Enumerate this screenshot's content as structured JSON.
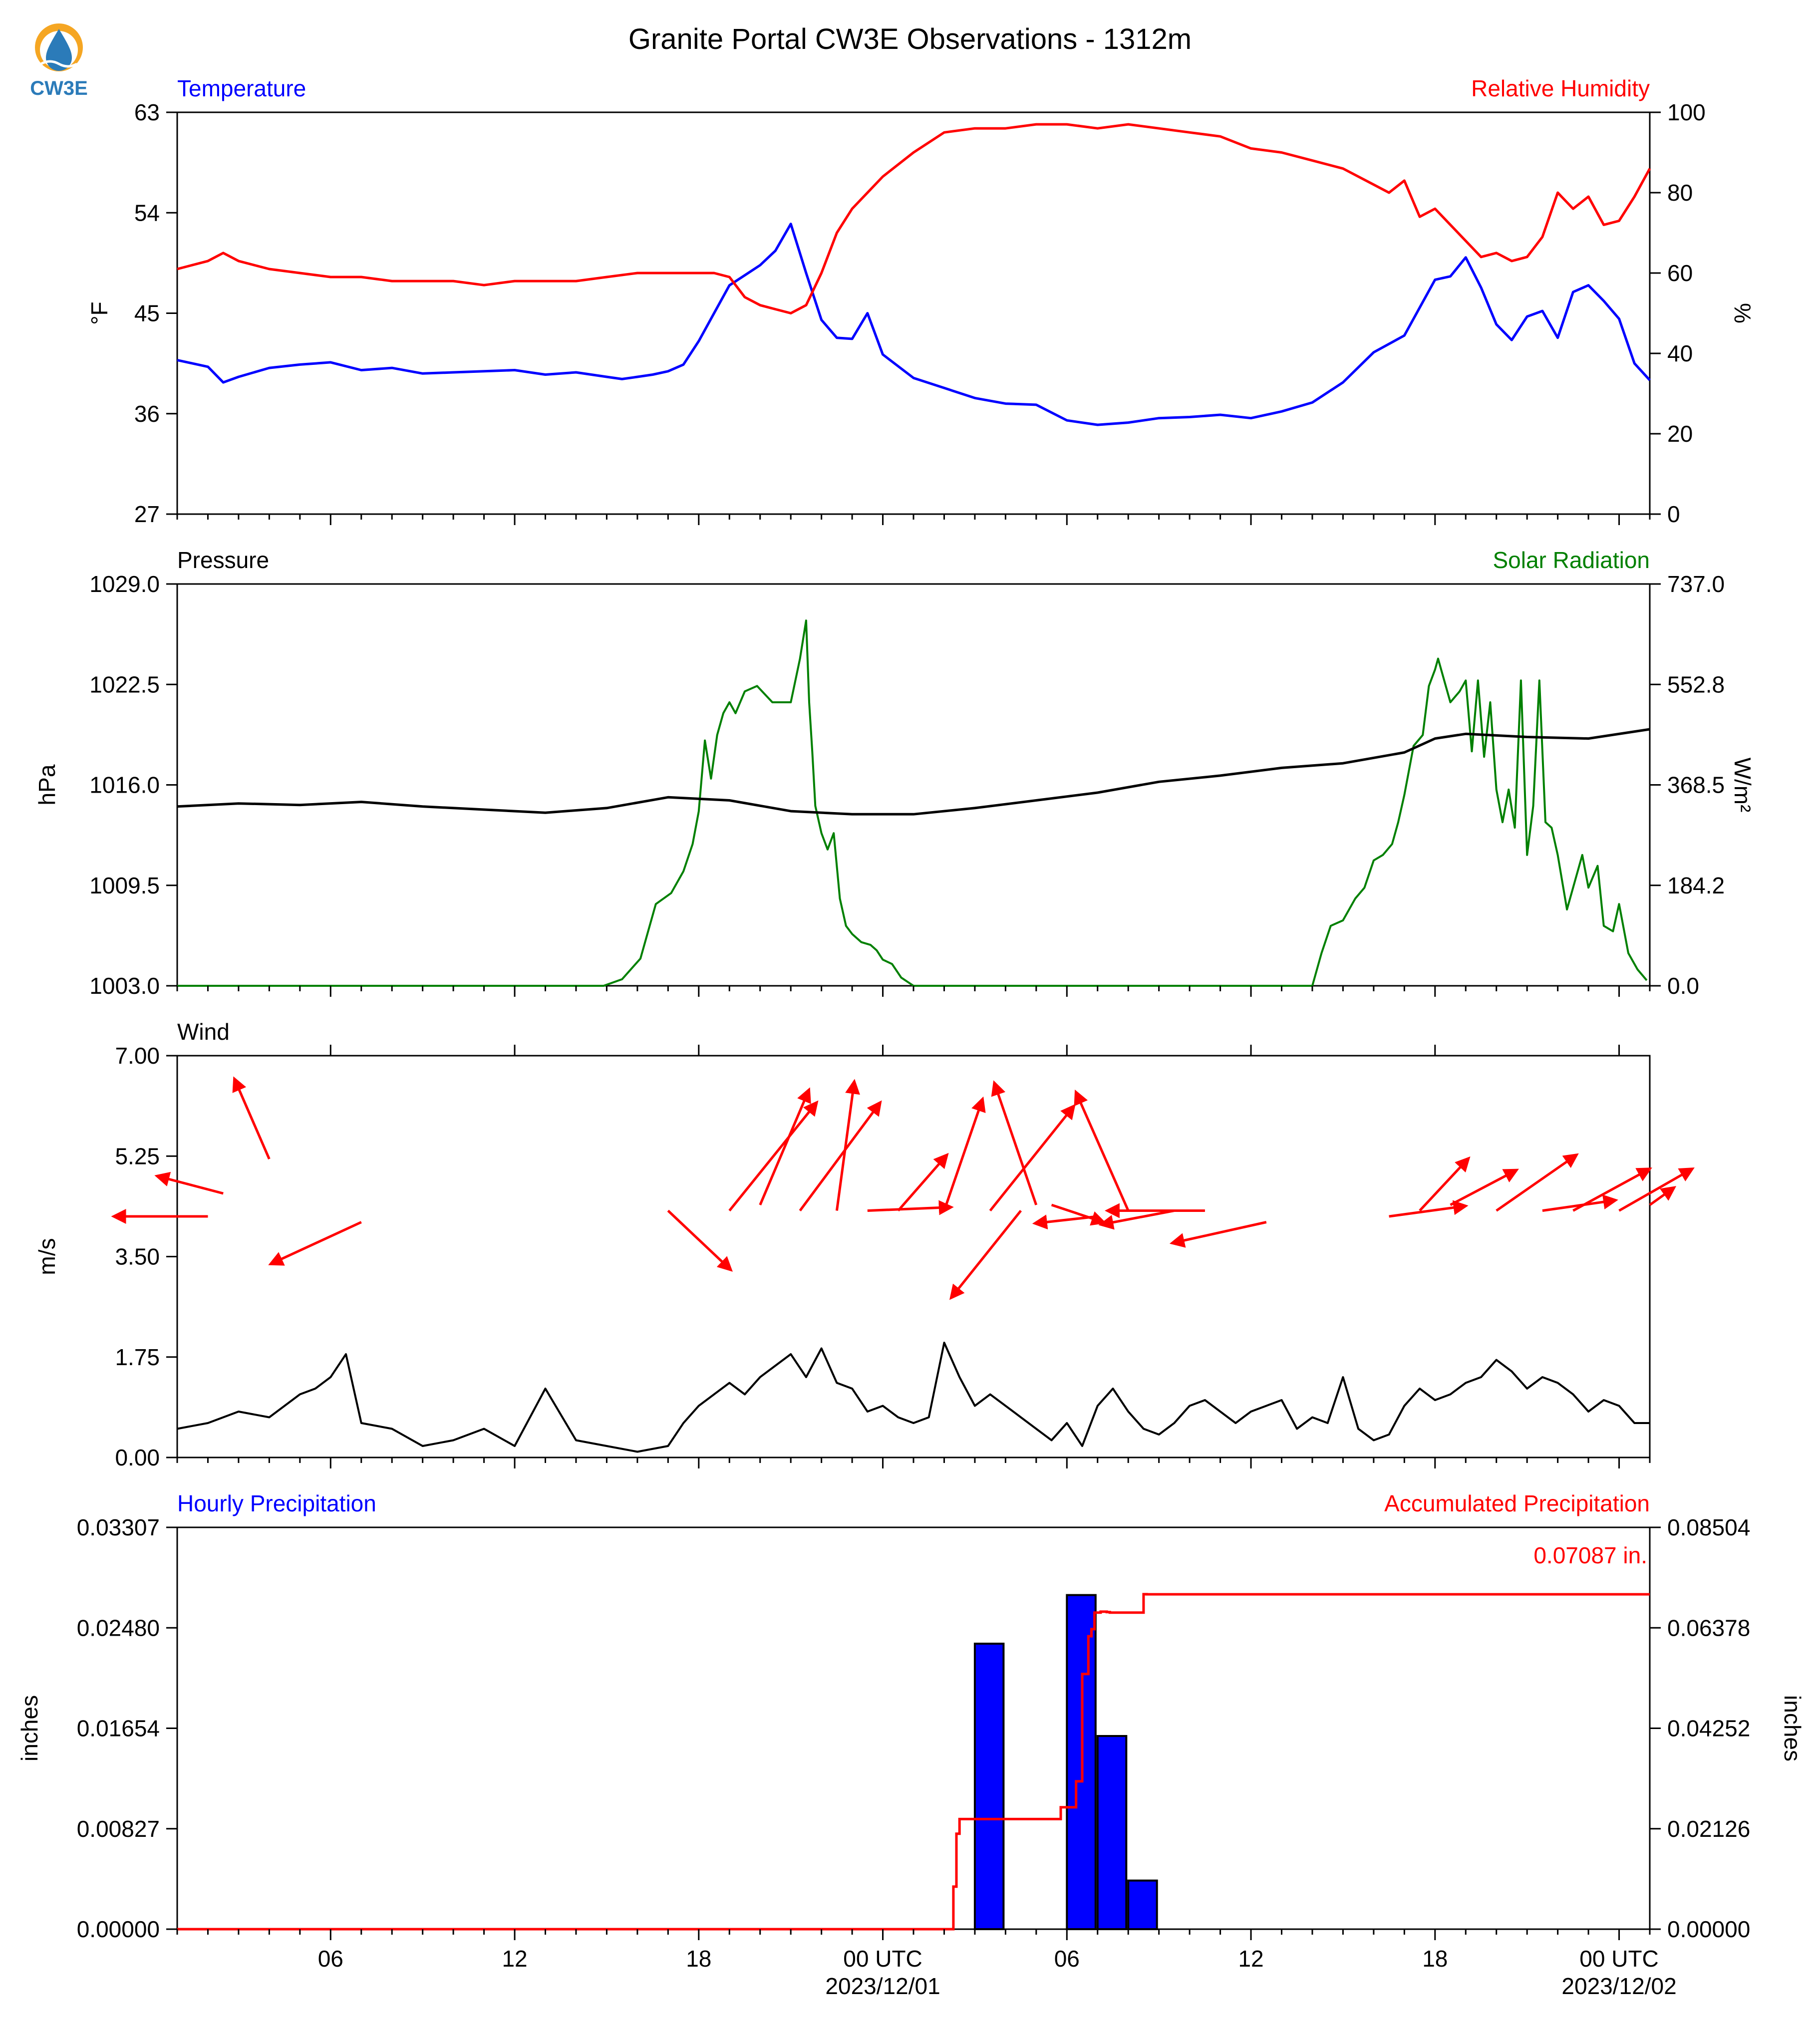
{
  "title": "Granite Portal CW3E Observations - 1312m",
  "logo": {
    "text": "CW3E",
    "colors": {
      "sun": "#f5a623",
      "drop": "#2b7bb9",
      "text": "#2b7bb9"
    }
  },
  "colors": {
    "blue": "#0000ff",
    "red": "#ff0000",
    "green": "#008000",
    "black": "#000000"
  },
  "x_axis": {
    "ticks": [
      "06",
      "12",
      "18",
      "00 UTC",
      "06",
      "12",
      "18",
      "00 UTC"
    ],
    "date_labels": [
      "2023/12/01",
      "2023/12/02"
    ]
  },
  "panels": {
    "temperature": {
      "left_title": "Temperature",
      "right_title": "Relative Humidity",
      "left_unit": "°F",
      "right_unit": "%",
      "left_ticks": [
        "27",
        "36",
        "45",
        "54",
        "63"
      ],
      "right_ticks": [
        "0",
        "20",
        "40",
        "60",
        "80",
        "100"
      ]
    },
    "pressure": {
      "left_title": "Pressure",
      "right_title": "Solar Radiation",
      "left_unit": "hPa",
      "right_unit": "W/m²",
      "left_ticks": [
        "1003.0",
        "1009.5",
        "1016.0",
        "1022.5",
        "1029.0"
      ],
      "right_ticks": [
        "0.0",
        "184.2",
        "368.5",
        "552.8",
        "737.0"
      ]
    },
    "wind": {
      "left_title": "Wind",
      "left_unit": "m/s",
      "left_ticks": [
        "0.00",
        "1.75",
        "3.50",
        "5.25",
        "7.00"
      ]
    },
    "precip": {
      "left_title": "Hourly Precipitation",
      "right_title": "Accumulated Precipitation",
      "left_unit": "inches",
      "right_unit": "inches",
      "left_ticks": [
        "0.00000",
        "0.00827",
        "0.01654",
        "0.02480",
        "0.03307"
      ],
      "right_ticks": [
        "0.00000",
        "0.02126",
        "0.04252",
        "0.06378",
        "0.08504"
      ],
      "total_label": "0.07087 in."
    }
  },
  "chart_data": [
    {
      "type": "line",
      "x_unit": "hours since 2023-11-30 01:00 UTC",
      "xlim": [
        0,
        48
      ],
      "series": [
        {
          "name": "Temperature",
          "axis": "left",
          "color": "#0000ff",
          "ylim": [
            27,
            63
          ],
          "ylabel": "°F",
          "x": [
            0,
            1,
            1.5,
            2,
            3,
            4,
            5,
            6,
            7,
            8,
            9,
            10,
            11,
            12,
            13,
            14,
            14.5,
            15,
            15.5,
            16,
            16.5,
            17,
            17.5,
            18,
            18.5,
            19,
            19.5,
            20,
            20.5,
            21,
            21.5,
            22,
            22.5,
            23,
            24,
            25,
            26,
            27,
            28,
            29,
            30,
            31,
            32,
            33,
            34,
            35,
            36,
            37,
            38,
            39,
            40,
            41,
            41.5,
            42,
            42.5,
            43,
            43.5,
            44,
            44.5,
            45,
            45.5,
            46,
            46.5,
            47,
            47.5,
            48
          ],
          "y": [
            40.8,
            40.2,
            38.8,
            39.3,
            40.1,
            40.4,
            40.6,
            39.9,
            40.1,
            39.6,
            39.7,
            39.8,
            39.9,
            39.5,
            39.7,
            39.3,
            39.1,
            39.3,
            39.5,
            39.8,
            40.4,
            42.5,
            45.0,
            47.5,
            48.4,
            49.3,
            50.6,
            53.0,
            48.6,
            44.4,
            42.8,
            42.7,
            45.0,
            41.3,
            39.2,
            38.3,
            37.4,
            36.9,
            36.8,
            35.4,
            35.0,
            35.2,
            35.6,
            35.7,
            35.9,
            35.6,
            36.2,
            37.0,
            38.8,
            41.5,
            43.0,
            48.0,
            48.3,
            50.0,
            47.3,
            44.0,
            42.6,
            44.7,
            45.2,
            42.8,
            46.9,
            47.5,
            46.1,
            44.5,
            40.5,
            39.0
          ]
        },
        {
          "name": "Relative Humidity",
          "axis": "right",
          "color": "#ff0000",
          "ylim": [
            0,
            100
          ],
          "ylabel": "%",
          "x": [
            0,
            1,
            1.5,
            2,
            3,
            4,
            5,
            6,
            7,
            8,
            9,
            10,
            11,
            12,
            13,
            14,
            15,
            16,
            17,
            17.5,
            18,
            18.5,
            19,
            19.5,
            20,
            20.5,
            21,
            21.5,
            22,
            22.5,
            23,
            24,
            25,
            26,
            27,
            28,
            29,
            30,
            31,
            32,
            33,
            34,
            35,
            36,
            37,
            38,
            39,
            39.5,
            40,
            40.5,
            41,
            41.5,
            42,
            42.5,
            43,
            43.5,
            44,
            44.5,
            45,
            45.5,
            46,
            46.5,
            47,
            47.5,
            48
          ],
          "y": [
            61,
            63,
            65,
            63,
            61,
            60,
            59,
            59,
            58,
            58,
            58,
            57,
            58,
            58,
            58,
            59,
            60,
            60,
            60,
            60,
            59,
            54,
            52,
            51,
            50,
            52,
            60,
            70,
            76,
            80,
            84,
            90,
            95,
            96,
            96,
            97,
            97,
            96,
            97,
            96,
            95,
            94,
            91,
            90,
            88,
            86,
            82,
            80,
            83,
            74,
            76,
            72,
            68,
            64,
            65,
            63,
            64,
            69,
            80,
            76,
            79,
            72,
            73,
            79,
            86
          ]
        }
      ]
    },
    {
      "type": "line",
      "x_unit": "hours since 2023-11-30 01:00 UTC",
      "xlim": [
        0,
        48
      ],
      "series": [
        {
          "name": "Pressure",
          "axis": "left",
          "color": "#000000",
          "ylim": [
            1003.0,
            1029.0
          ],
          "ylabel": "hPa",
          "x": [
            0,
            2,
            4,
            6,
            8,
            10,
            12,
            14,
            16,
            18,
            20,
            22,
            24,
            26,
            28,
            30,
            32,
            34,
            36,
            38,
            40,
            41,
            42,
            44,
            46,
            48
          ],
          "y": [
            1014.6,
            1014.8,
            1014.7,
            1014.9,
            1014.6,
            1014.4,
            1014.2,
            1014.5,
            1015.2,
            1015.0,
            1014.3,
            1014.1,
            1014.1,
            1014.5,
            1015.0,
            1015.5,
            1016.2,
            1016.6,
            1017.1,
            1017.4,
            1018.1,
            1019.0,
            1019.3,
            1019.1,
            1019.0,
            1019.6
          ]
        },
        {
          "name": "Solar Radiation",
          "axis": "right",
          "color": "#008000",
          "ylim": [
            0,
            737
          ],
          "ylabel": "W/m²",
          "x": [
            0,
            13.9,
            14.5,
            15.1,
            15.6,
            16.1,
            16.5,
            16.8,
            17.0,
            17.2,
            17.4,
            17.6,
            17.8,
            18.0,
            18.2,
            18.5,
            18.9,
            19.4,
            20.0,
            20.3,
            20.5,
            20.6,
            20.7,
            20.8,
            21.0,
            21.2,
            21.4,
            21.6,
            21.8,
            22.0,
            22.3,
            22.6,
            22.8,
            23.0,
            23.3,
            23.6,
            24.0,
            24.1,
            37.0,
            37.3,
            37.6,
            38.0,
            38.4,
            38.7,
            39.0,
            39.3,
            39.6,
            39.8,
            40.0,
            40.3,
            40.6,
            40.8,
            41.0,
            41.1,
            41.3,
            41.5,
            41.8,
            42.0,
            42.2,
            42.4,
            42.6,
            42.8,
            43.0,
            43.2,
            43.4,
            43.6,
            43.8,
            44.0,
            44.2,
            44.4,
            44.6,
            44.8,
            45.0,
            45.3,
            45.6,
            45.8,
            46.0,
            46.3,
            46.5,
            46.8,
            47.0,
            47.3,
            47.6,
            47.9
          ],
          "y": [
            0,
            0,
            12,
            50,
            150,
            170,
            210,
            260,
            320,
            450,
            380,
            460,
            500,
            520,
            500,
            540,
            550,
            520,
            520,
            600,
            670,
            520,
            430,
            330,
            280,
            250,
            280,
            160,
            110,
            95,
            80,
            75,
            65,
            48,
            40,
            15,
            0,
            0,
            0,
            60,
            110,
            120,
            160,
            180,
            230,
            240,
            260,
            300,
            350,
            440,
            460,
            550,
            580,
            600,
            560,
            520,
            540,
            560,
            430,
            560,
            420,
            520,
            360,
            300,
            360,
            290,
            560,
            240,
            330,
            560,
            300,
            290,
            240,
            140,
            200,
            240,
            180,
            220,
            110,
            100,
            150,
            60,
            30,
            10
          ]
        }
      ]
    },
    {
      "type": "line",
      "x_unit": "hours since 2023-11-30 01:00 UTC",
      "xlim": [
        0,
        48
      ],
      "series": [
        {
          "name": "Wind",
          "color": "#000000",
          "ylim": [
            0,
            7
          ],
          "ylabel": "m/s",
          "x": [
            0,
            1,
            2,
            3,
            4,
            4.5,
            5,
            5.5,
            6,
            7,
            8,
            9,
            10,
            11,
            12,
            13,
            14,
            15,
            16,
            16.5,
            17,
            17.5,
            18,
            18.5,
            19,
            19.5,
            20,
            20.5,
            21,
            21.5,
            22,
            22.5,
            23,
            23.5,
            24,
            24.5,
            25,
            25.5,
            26,
            26.5,
            27,
            27.5,
            28,
            28.5,
            29,
            29.5,
            30,
            30.5,
            31,
            31.5,
            32,
            32.5,
            33,
            33.5,
            34,
            34.5,
            35,
            35.5,
            36,
            36.5,
            37,
            37.5,
            38,
            38.5,
            39,
            39.5,
            40,
            40.5,
            41,
            41.5,
            42,
            42.5,
            43,
            43.5,
            44,
            44.5,
            45,
            45.5,
            46,
            46.5,
            47,
            47.5,
            48
          ],
          "y": [
            0.5,
            0.6,
            0.8,
            0.7,
            1.1,
            1.2,
            1.4,
            1.8,
            0.6,
            0.5,
            0.2,
            0.3,
            0.5,
            0.2,
            1.2,
            0.3,
            0.2,
            0.1,
            0.2,
            0.6,
            0.9,
            1.1,
            1.3,
            1.1,
            1.4,
            1.6,
            1.8,
            1.4,
            1.9,
            1.3,
            1.2,
            0.8,
            0.9,
            0.7,
            0.6,
            0.7,
            2.0,
            1.4,
            0.9,
            1.1,
            0.9,
            0.7,
            0.5,
            0.3,
            0.6,
            0.2,
            0.9,
            1.2,
            0.8,
            0.5,
            0.4,
            0.6,
            0.9,
            1.0,
            0.8,
            0.6,
            0.8,
            0.9,
            1.0,
            0.5,
            0.7,
            0.6,
            1.4,
            0.5,
            0.3,
            0.4,
            0.9,
            1.2,
            1.0,
            1.1,
            1.3,
            1.4,
            1.7,
            1.5,
            1.2,
            1.4,
            1.3,
            1.1,
            0.8,
            1.0,
            0.9,
            0.6,
            0.6
          ]
        },
        {
          "name": "Wind vectors",
          "x": [
            1,
            1.5,
            3,
            6,
            16,
            18,
            19,
            20.3,
            21.5,
            22.5,
            23.5,
            25,
            26.5,
            27.5,
            28,
            28.5,
            30,
            31,
            32.5,
            33.5,
            35.5,
            39.5,
            40.5,
            41.5,
            43,
            44.5,
            45.5,
            47,
            48
          ],
          "speed": [
            4.2,
            4.6,
            5.2,
            4.1,
            4.3,
            4.3,
            4.4,
            4.3,
            4.3,
            4.3,
            4.3,
            4.3,
            4.3,
            4.3,
            4.4,
            4.4,
            4.2,
            4.3,
            4.3,
            4.3,
            4.1,
            4.2,
            4.3,
            4.4,
            4.3,
            4.3,
            4.3,
            4.3,
            4.4
          ],
          "u": [
            -2.7,
            -1.9,
            -1.0,
            -2.6,
            1.8,
            2.5,
            1.4,
            2.3,
            0.5,
            2.4,
            1.4,
            1.1,
            2.4,
            -2.0,
            -1.2,
            1.5,
            -1.8,
            -1.5,
            -2.1,
            -2.8,
            -2.7,
            2.2,
            1.4,
            1.9,
            2.3,
            2.1,
            2.2,
            2.1,
            0.7
          ],
          "v": [
            0.0,
            0.5,
            2.3,
            -1.2,
            -1.7,
            3.1,
            3.3,
            3.1,
            3.7,
            0.1,
            1.6,
            3.2,
            3.0,
            -2.5,
            3.5,
            -0.5,
            -0.2,
            3.4,
            -0.4,
            0.0,
            -0.6,
            0.3,
            1.5,
            1.0,
            1.6,
            0.3,
            1.2,
            1.2,
            0.5
          ]
        }
      ]
    },
    {
      "type": "bar",
      "x_unit": "hours since 2023-11-30 01:00 UTC",
      "xlim": [
        0,
        48
      ],
      "series": [
        {
          "name": "Hourly Precipitation",
          "axis": "left",
          "color": "#0000ff",
          "ylim": [
            0,
            0.03307
          ],
          "ylabel": "inches",
          "x": [
            26,
            29,
            30,
            31
          ],
          "values": [
            0.0235,
            0.0275,
            0.0159,
            0.004
          ]
        },
        {
          "name": "Accumulated Precipitation",
          "axis": "right",
          "color": "#ff0000",
          "type": "step",
          "ylim": [
            0,
            0.08504
          ],
          "ylabel": "inches",
          "x": [
            0,
            25.1,
            25.3,
            25.4,
            25.5,
            28.7,
            28.8,
            29.3,
            29.5,
            29.7,
            29.8,
            29.9,
            30.1,
            30.3,
            30.4,
            31.4,
            31.5,
            31.6,
            48
          ],
          "y": [
            0,
            0,
            0.009,
            0.0202,
            0.0233,
            0.0233,
            0.0258,
            0.0313,
            0.054,
            0.062,
            0.0635,
            0.067,
            0.0672,
            0.0671,
            0.067,
            0.067,
            0.0709,
            0.07087,
            0.07087
          ]
        }
      ]
    }
  ]
}
